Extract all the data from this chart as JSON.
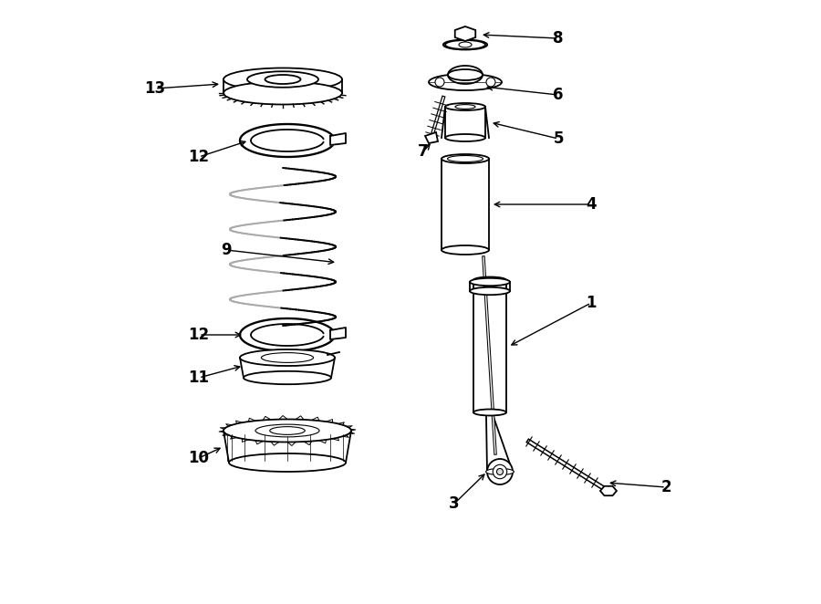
{
  "background_color": "#ffffff",
  "line_color": "#000000",
  "label_fontsize": 12,
  "figsize": [
    9.0,
    6.62
  ],
  "dpi": 100
}
